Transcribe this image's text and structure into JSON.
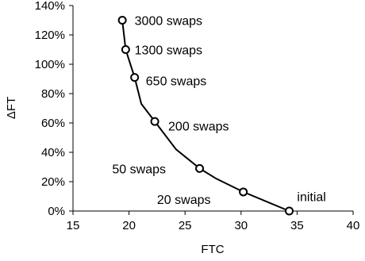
{
  "chart_data": {
    "type": "line",
    "title": "",
    "xlabel": "FTC",
    "ylabel": "ΔFT",
    "xlim": [
      15,
      40
    ],
    "ylim": [
      0,
      140
    ],
    "x_ticks": [
      "15",
      "20",
      "25",
      "30",
      "35",
      "40"
    ],
    "y_ticks": [
      "0%",
      "20%",
      "40%",
      "60%",
      "80%",
      "100%",
      "120%",
      "140%"
    ],
    "grid": false,
    "series": [
      {
        "line_points": [
          {
            "x": 34.3,
            "y": 0
          },
          {
            "x": 30.2,
            "y": 13
          },
          {
            "x": 27.8,
            "y": 22
          },
          {
            "x": 26.3,
            "y": 29
          },
          {
            "x": 24.2,
            "y": 42
          },
          {
            "x": 22.3,
            "y": 61
          },
          {
            "x": 21.1,
            "y": 73
          },
          {
            "x": 20.5,
            "y": 91
          },
          {
            "x": 19.7,
            "y": 110
          },
          {
            "x": 19.4,
            "y": 130
          }
        ],
        "markers": [
          {
            "x": 34.3,
            "y": 0
          },
          {
            "x": 30.2,
            "y": 13
          },
          {
            "x": 26.3,
            "y": 29
          },
          {
            "x": 22.3,
            "y": 61
          },
          {
            "x": 20.5,
            "y": 91
          },
          {
            "x": 19.7,
            "y": 110
          },
          {
            "x": 19.4,
            "y": 130
          }
        ]
      }
    ],
    "annotations": [
      {
        "text": "3000 swaps",
        "x": 20.5,
        "y": 130
      },
      {
        "text": "1300 swaps",
        "x": 20.5,
        "y": 110
      },
      {
        "text": "650 swaps",
        "x": 21.5,
        "y": 89
      },
      {
        "text": "200 swaps",
        "x": 23.5,
        "y": 58
      },
      {
        "text": "50 swaps",
        "x": 18.5,
        "y": 29
      },
      {
        "text": "20 swaps",
        "x": 22.5,
        "y": 8
      },
      {
        "text": "initial",
        "x": 35.0,
        "y": 10
      }
    ]
  }
}
